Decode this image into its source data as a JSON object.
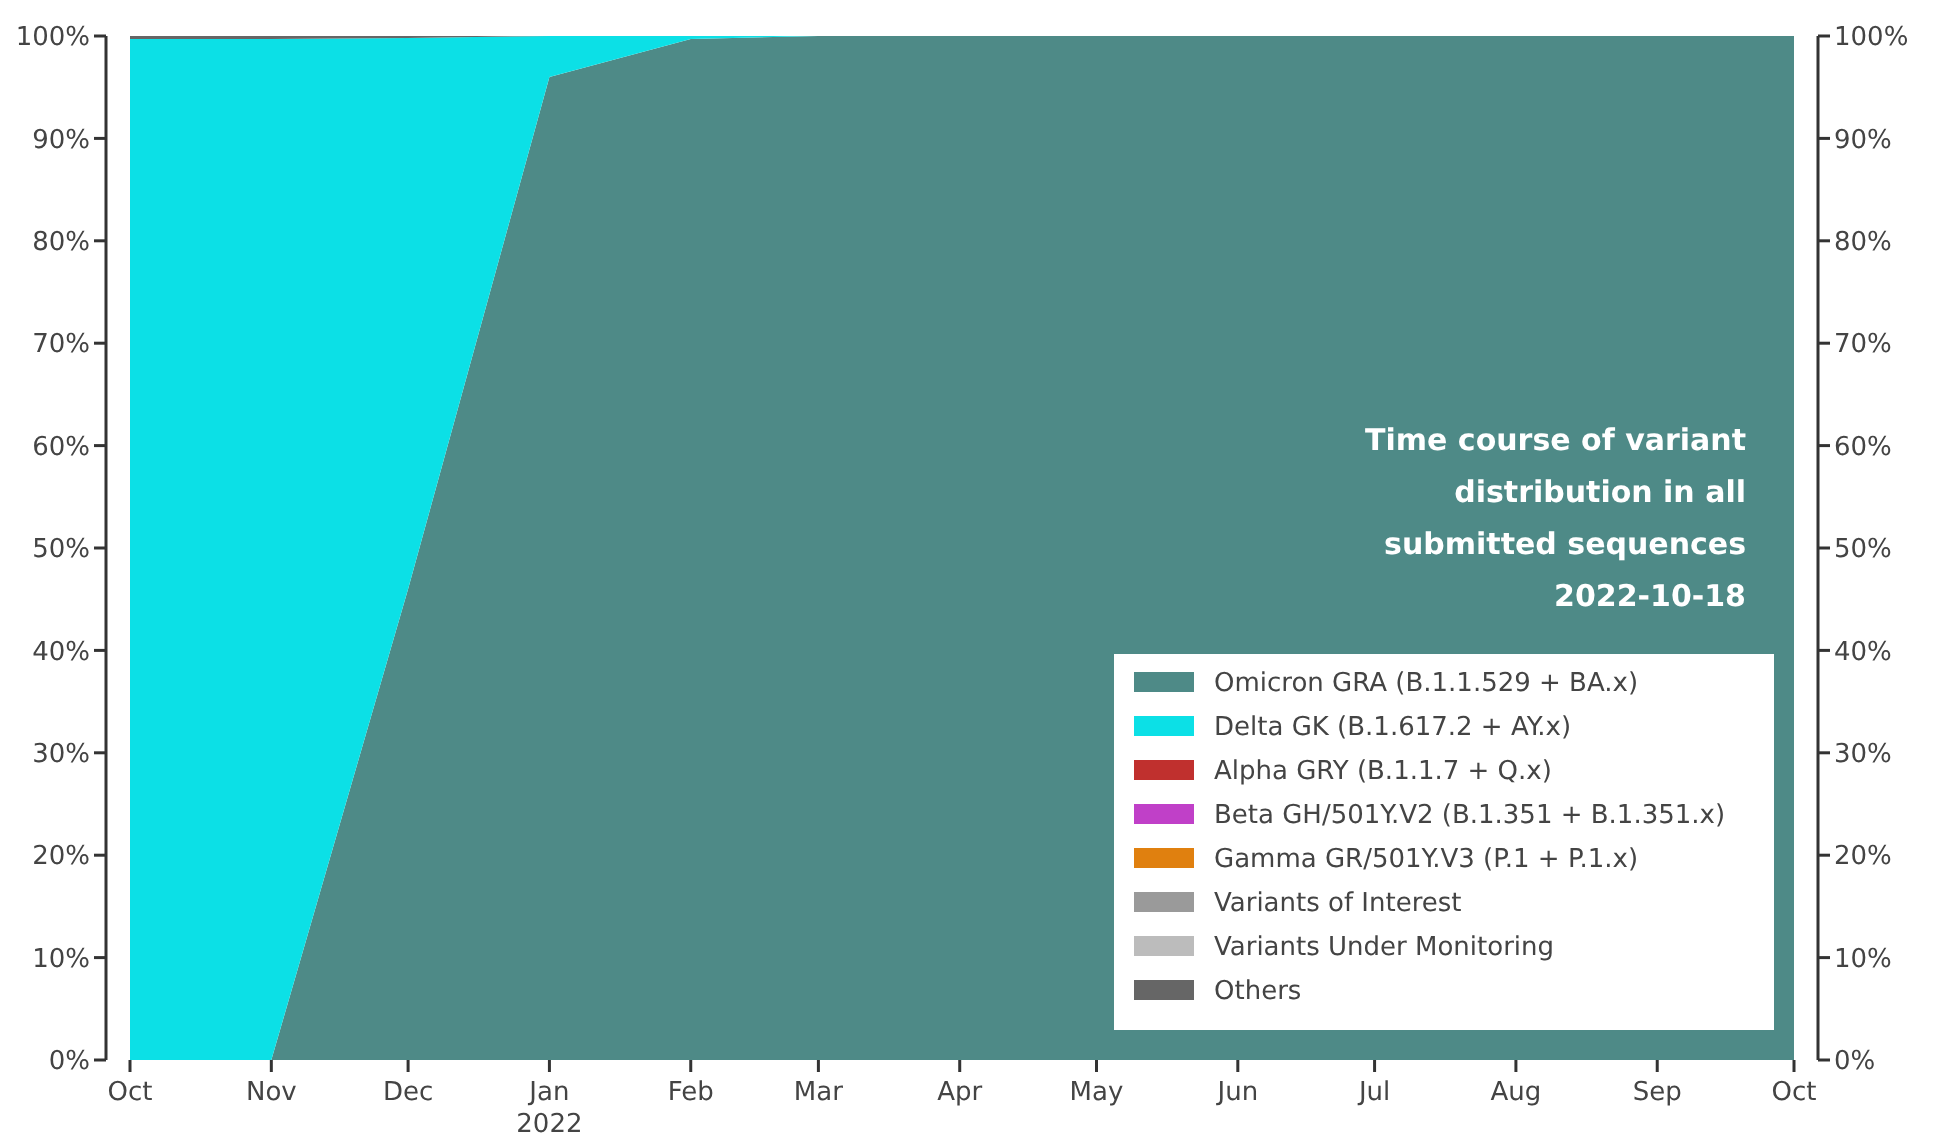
{
  "chart_data": {
    "type": "area",
    "stacked": true,
    "x": [
      "2021-10-01",
      "2021-11-01",
      "2021-12-01",
      "2022-01-01",
      "2022-02-01",
      "2022-03-01",
      "2022-04-01",
      "2022-05-01",
      "2022-06-01",
      "2022-07-01",
      "2022-08-01",
      "2022-09-01",
      "2022-10-01"
    ],
    "series": [
      {
        "name": "Omicron GRA (B.1.1.529 + BA.x)",
        "color": "#4e8a87",
        "values": [
          0,
          0,
          46,
          96,
          99.7,
          100,
          100,
          100,
          100,
          100,
          100,
          100,
          100
        ]
      },
      {
        "name": "Delta GK (B.1.617.2 + AY.x)",
        "color": "#0ce0e6",
        "values": [
          99.7,
          99.7,
          53.8,
          4,
          0.3,
          0,
          null,
          null,
          null,
          null,
          null,
          null,
          null
        ]
      },
      {
        "name": "Alpha GRY (B.1.1.7 + Q.x)",
        "color": "#c0302e",
        "values": [
          null,
          null,
          null,
          null,
          null,
          null,
          null,
          null,
          null,
          null,
          null,
          null,
          null
        ]
      },
      {
        "name": "Beta GH/501Y.V2 (B.1.351 + B.1.351.x)",
        "color": "#c040c8",
        "values": [
          null,
          null,
          null,
          null,
          null,
          null,
          null,
          null,
          null,
          null,
          null,
          null,
          null
        ]
      },
      {
        "name": "Gamma GR/501Y.V3 (P.1 + P.1.x)",
        "color": "#e0800f",
        "values": [
          null,
          null,
          null,
          null,
          null,
          null,
          null,
          null,
          null,
          null,
          null,
          null,
          null
        ]
      },
      {
        "name": "Variants of Interest",
        "color": "#9a9a9a",
        "values": [
          null,
          null,
          null,
          null,
          null,
          null,
          null,
          null,
          null,
          null,
          null,
          null,
          null
        ]
      },
      {
        "name": "Variants Under Monitoring",
        "color": "#bcbcbc",
        "values": [
          null,
          null,
          null,
          null,
          null,
          null,
          null,
          null,
          null,
          null,
          null,
          null,
          null
        ]
      },
      {
        "name": "Others",
        "color": "#666666",
        "values": [
          0.3,
          0.3,
          0.2,
          0,
          null,
          null,
          null,
          null,
          null,
          null,
          null,
          null,
          null
        ]
      }
    ],
    "xlim": [
      "2021-10-01",
      "2022-10-01"
    ],
    "xticks": [
      {
        "value": "2021-10-01",
        "label": "Oct"
      },
      {
        "value": "2021-11-01",
        "label": "Nov"
      },
      {
        "value": "2021-12-01",
        "label": "Dec"
      },
      {
        "value": "2022-01-01",
        "label": "Jan\n2022"
      },
      {
        "value": "2022-02-01",
        "label": "Feb"
      },
      {
        "value": "2022-03-01",
        "label": "Mar"
      },
      {
        "value": "2022-04-01",
        "label": "Apr"
      },
      {
        "value": "2022-05-01",
        "label": "May"
      },
      {
        "value": "2022-06-01",
        "label": "Jun"
      },
      {
        "value": "2022-07-01",
        "label": "Jul"
      },
      {
        "value": "2022-08-01",
        "label": "Aug"
      },
      {
        "value": "2022-09-01",
        "label": "Sep"
      },
      {
        "value": "2022-10-01",
        "label": "Oct"
      }
    ],
    "ylim": [
      0,
      100
    ],
    "yticks": [
      {
        "value": 0,
        "label": "0%"
      },
      {
        "value": 10,
        "label": "10%"
      },
      {
        "value": 20,
        "label": "20%"
      },
      {
        "value": 30,
        "label": "30%"
      },
      {
        "value": 40,
        "label": "40%"
      },
      {
        "value": 50,
        "label": "50%"
      },
      {
        "value": 60,
        "label": "60%"
      },
      {
        "value": 70,
        "label": "70%"
      },
      {
        "value": 80,
        "label": "80%"
      },
      {
        "value": 90,
        "label": "90%"
      },
      {
        "value": 100,
        "label": "100%"
      }
    ],
    "y2lim": [
      0,
      100
    ],
    "y2ticks": [
      {
        "value": 0,
        "label": "0%"
      },
      {
        "value": 10,
        "label": "10%"
      },
      {
        "value": 20,
        "label": "20%"
      },
      {
        "value": 30,
        "label": "30%"
      },
      {
        "value": 40,
        "label": "40%"
      },
      {
        "value": 50,
        "label": "50%"
      },
      {
        "value": 60,
        "label": "60%"
      },
      {
        "value": 70,
        "label": "70%"
      },
      {
        "value": 80,
        "label": "80%"
      },
      {
        "value": 90,
        "label": "90%"
      },
      {
        "value": 100,
        "label": "100%"
      }
    ],
    "annotations": [
      "Time course of variant\ndistribution in all\nsubmitted sequences\n2022-10-18"
    ],
    "legend": "bottom right",
    "grid": false
  }
}
